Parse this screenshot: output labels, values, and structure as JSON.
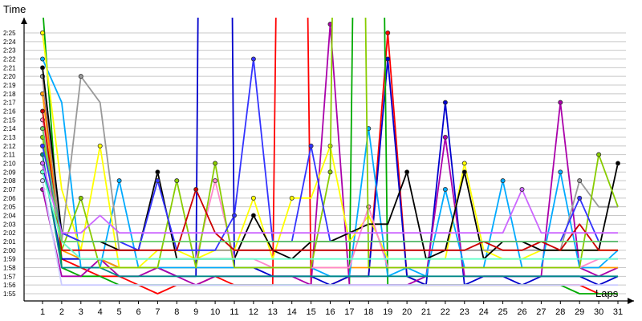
{
  "chart_data": {
    "type": "line",
    "title": "",
    "ylabel": "Time",
    "xlabel": "Laps",
    "x": [
      1,
      2,
      3,
      4,
      5,
      6,
      7,
      8,
      9,
      10,
      11,
      12,
      13,
      14,
      15,
      16,
      17,
      18,
      19,
      20,
      21,
      22,
      23,
      24,
      25,
      26,
      27,
      28,
      29,
      30,
      31
    ],
    "y_ticks": [
      "1:55",
      "1:56",
      "1:57",
      "1:58",
      "1:59",
      "2:00",
      "2:01",
      "2:02",
      "2:03",
      "2:04",
      "2:05",
      "2:06",
      "2:07",
      "2:08",
      "2:09",
      "2:10",
      "2:11",
      "2:12",
      "2:13",
      "2:14",
      "2:15",
      "2:16",
      "2:17",
      "2:18",
      "2:19",
      "2:20",
      "2:21",
      "2:22",
      "2:23",
      "2:24",
      "2:25"
    ],
    "ylim_seconds": [
      114,
      149
    ],
    "grid": true,
    "legend": "none",
    "series": [
      {
        "color": "#ff0000",
        "values": [
          140,
          119,
          118,
          117,
          117,
          116,
          115,
          116,
          116,
          117,
          116,
          116,
          116,
          300,
          116,
          116,
          117,
          117,
          145,
          117,
          116,
          116,
          116,
          116,
          116,
          116,
          116,
          116,
          116,
          115,
          115
        ]
      },
      {
        "color": "#0000cc",
        "values": [
          130,
          119,
          119,
          119,
          118,
          118,
          118,
          117,
          117,
          400,
          118,
          118,
          117,
          117,
          117,
          116,
          117,
          117,
          142,
          117,
          116,
          137,
          116,
          117,
          117,
          116,
          117,
          117,
          117,
          116,
          117
        ]
      },
      {
        "color": "#00aa00",
        "values": [
          148,
          118,
          117,
          117,
          116,
          116,
          116,
          116,
          116,
          116,
          116,
          116,
          116,
          116,
          116,
          116,
          116,
          300,
          116,
          116,
          116,
          116,
          116,
          116,
          116,
          116,
          116,
          116,
          115,
          115,
          115
        ]
      },
      {
        "color": "#aa00aa",
        "values": [
          127,
          117,
          117,
          119,
          117,
          117,
          118,
          117,
          116,
          117,
          117,
          117,
          117,
          117,
          116,
          146,
          116,
          116,
          116,
          116,
          117,
          133,
          117,
          117,
          117,
          117,
          117,
          137,
          118,
          117,
          118
        ]
      },
      {
        "color": "#ff9900",
        "values": [
          138,
          120,
          119,
          119,
          118,
          118,
          118,
          118,
          118,
          118,
          118,
          118,
          118,
          118,
          118,
          118,
          118,
          118,
          118,
          118,
          118,
          118,
          118,
          118,
          118,
          118,
          118,
          118,
          118,
          118,
          118
        ]
      },
      {
        "color": "#00aaff",
        "values": [
          142,
          137,
          118,
          118,
          128,
          118,
          118,
          118,
          118,
          118,
          118,
          118,
          118,
          118,
          118,
          117,
          117,
          134,
          117,
          118,
          117,
          127,
          118,
          118,
          128,
          118,
          118,
          129,
          118,
          118,
          120
        ]
      },
      {
        "color": "#ffff00",
        "values": [
          145,
          127,
          120,
          132,
          118,
          118,
          120,
          120,
          119,
          120,
          120,
          126,
          119,
          126,
          126,
          132,
          121,
          124,
          119,
          119,
          119,
          119,
          130,
          120,
          119,
          119,
          120,
          120,
          120,
          120,
          120
        ]
      },
      {
        "color": "#999999",
        "values": [
          140,
          121,
          140,
          137,
          120,
          120,
          120,
          120,
          120,
          120,
          120,
          120,
          120,
          120,
          120,
          120,
          120,
          120,
          120,
          120,
          120,
          120,
          120,
          120,
          120,
          120,
          120,
          120,
          128,
          125,
          125
        ]
      },
      {
        "color": "#000000",
        "values": [
          141,
          122,
          121,
          121,
          120,
          120,
          129,
          119,
          119,
          119,
          119,
          124,
          120,
          119,
          121,
          121,
          122,
          123,
          123,
          129,
          119,
          120,
          129,
          119,
          121,
          121,
          120,
          120,
          120,
          120,
          130
        ]
      },
      {
        "color": "#ff88cc",
        "values": [
          135,
          121,
          119,
          119,
          119,
          119,
          119,
          119,
          119,
          128,
          119,
          119,
          118,
          118,
          118,
          118,
          118,
          125,
          118,
          118,
          118,
          118,
          118,
          118,
          118,
          118,
          118,
          118,
          118,
          119,
          119
        ]
      },
      {
        "color": "#008888",
        "values": [
          131,
          118,
          118,
          118,
          117,
          117,
          117,
          117,
          117,
          117,
          117,
          117,
          117,
          117,
          117,
          117,
          117,
          117,
          117,
          117,
          117,
          117,
          117,
          117,
          117,
          117,
          117,
          117,
          117,
          117,
          117
        ]
      },
      {
        "color": "#88cc00",
        "values": [
          133,
          120,
          126,
          118,
          118,
          118,
          118,
          128,
          118,
          130,
          118,
          118,
          118,
          118,
          118,
          129,
          300,
          118,
          118,
          118,
          118,
          118,
          118,
          118,
          118,
          118,
          118,
          118,
          118,
          131,
          125
        ]
      },
      {
        "color": "#3333ff",
        "values": [
          132,
          122,
          121,
          121,
          121,
          120,
          128,
          120,
          120,
          120,
          124,
          142,
          121,
          121,
          132,
          121,
          121,
          121,
          121,
          121,
          121,
          121,
          121,
          121,
          121,
          121,
          121,
          121,
          126,
          121,
          121
        ]
      },
      {
        "color": "#cc0000",
        "values": [
          136,
          120,
          120,
          120,
          120,
          120,
          120,
          120,
          127,
          122,
          120,
          120,
          120,
          120,
          120,
          120,
          120,
          120,
          120,
          120,
          120,
          120,
          120,
          121,
          120,
          120,
          121,
          120,
          123,
          120,
          120
        ]
      },
      {
        "color": "#66ffcc",
        "values": [
          129,
          121,
          119,
          119,
          119,
          119,
          119,
          119,
          119,
          119,
          119,
          119,
          119,
          119,
          119,
          119,
          119,
          119,
          119,
          119,
          119,
          119,
          119,
          119,
          119,
          119,
          119,
          119,
          119,
          119,
          119
        ]
      },
      {
        "color": "#cc66ff",
        "values": [
          130,
          122,
          122,
          124,
          122,
          122,
          122,
          122,
          122,
          122,
          122,
          122,
          122,
          122,
          122,
          122,
          122,
          122,
          122,
          122,
          122,
          122,
          122,
          122,
          122,
          127,
          122,
          122,
          122,
          122,
          122
        ]
      },
      {
        "color": "#66cc66",
        "values": [
          134,
          121,
          121,
          121,
          121,
          121,
          121,
          121,
          121,
          121,
          121,
          121,
          121,
          121,
          121,
          121,
          121,
          121,
          121,
          121,
          121,
          121,
          121,
          121,
          121,
          121,
          121,
          121,
          121,
          121,
          121
        ]
      },
      {
        "color": "#ccccff",
        "values": [
          128,
          116,
          116,
          116,
          116,
          116,
          116,
          116,
          116,
          116,
          116,
          116,
          116,
          116,
          116,
          116,
          116,
          116,
          116,
          116,
          116,
          116,
          116,
          116,
          116,
          116,
          116,
          116,
          116,
          116,
          116
        ]
      }
    ]
  }
}
